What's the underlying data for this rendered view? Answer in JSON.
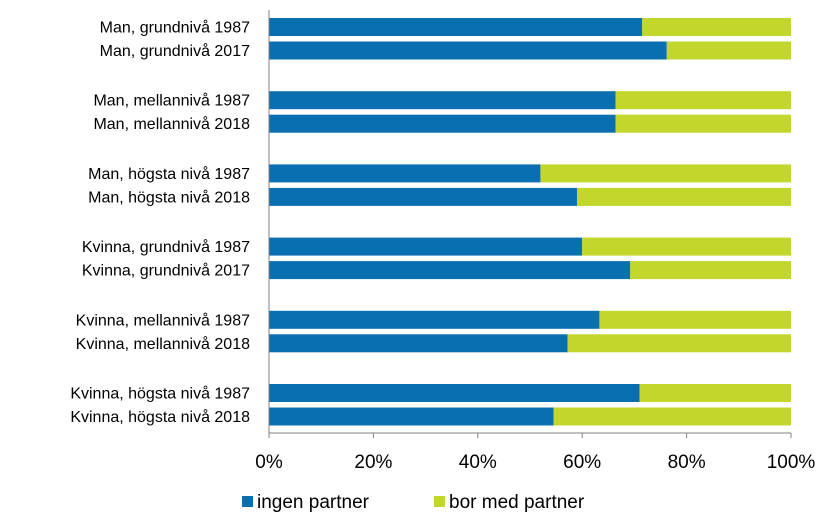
{
  "chart_data": {
    "type": "bar",
    "orientation": "horizontal",
    "stacked": "percent",
    "categories": [
      "Man, grundnivå 1987",
      "Man, grundnivå 2017",
      "Man, mellannivå 1987",
      "Man, mellannivå 2018",
      "Man, högsta nivå 1987",
      "Man, högsta nivå 2018",
      "Kvinna, grundnivå 1987",
      "Kvinna, grundnivå 2017",
      "Kvinna, mellannivå 1987",
      "Kvinna, mellannivå 2018",
      "Kvinna, högsta nivå 1987",
      "Kvinna, högsta nivå 2018"
    ],
    "series": [
      {
        "name": "ingen partner",
        "color": "#0a6fb0",
        "values": [
          71.5,
          76.2,
          66.4,
          66.4,
          52.0,
          59.0,
          60.0,
          69.2,
          63.3,
          57.2,
          71.0,
          54.5
        ]
      },
      {
        "name": "bor med partner",
        "color": "#c3d62b",
        "values": [
          28.5,
          23.8,
          33.6,
          33.6,
          48.0,
          41.0,
          40.0,
          30.8,
          36.7,
          42.8,
          29.0,
          45.5
        ]
      }
    ],
    "x_ticks": [
      "0%",
      "20%",
      "40%",
      "60%",
      "80%",
      "100%"
    ],
    "xlim": [
      0,
      100
    ],
    "grid": false,
    "legend_position": "bottom"
  }
}
